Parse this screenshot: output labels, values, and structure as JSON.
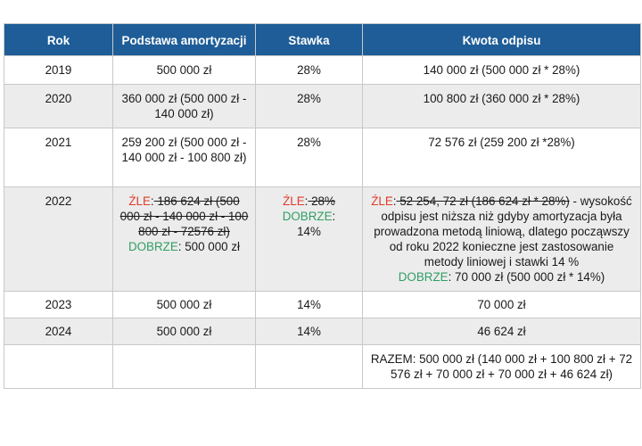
{
  "headers": [
    "Rok",
    "Podstawa amortyzacji",
    "Stawka",
    "Kwota odpisu"
  ],
  "rows": [
    {
      "year": "2019",
      "base": "500 000 zł",
      "rate": "28%",
      "amount": "140 000 zł (500 000 zł * 28%)"
    },
    {
      "year": "2020",
      "base": "360 000 zł (500 000 zł - 140 000 zł)",
      "rate": "28%",
      "amount": "100 800 zł (360 000 zł * 28%)"
    },
    {
      "year": "2021",
      "base": "259 200 zł (500 000 zł - 140 000 zł - 100 800 zł)",
      "rate": "28%",
      "amount": "72 576 zł (259 200 zł *28%)"
    },
    {
      "year": "2022",
      "base_bad_label": "ŹLE",
      "base_bad_value": " 186 624 zł (500 000 zł - 140 000 zł - 100 800 zł - 72576 zł)",
      "base_good_label": "DOBRZE",
      "base_good_value": ": 500 000 zł",
      "rate_bad_label": "ŹLE",
      "rate_bad_value": " 28%",
      "rate_good_label": "DOBRZE",
      "rate_good_value": "14%",
      "amount_bad_label": "ŹLE",
      "amount_bad_value": " 52 254, 72 zł (186 624 zł * 28%)",
      "amount_note": " - wysokość odpisu jest niższa niż gdyby amortyzacja była prowadzona metodą liniową, dlatego począwszy od roku 2022 konieczne jest zastosowanie metody liniowej i stawki 14 %",
      "amount_good_label": "DOBRZE",
      "amount_good_value": ": 70 000 zł (500 000 zł * 14%)"
    },
    {
      "year": "2023",
      "base": "500 000 zł",
      "rate": "14%",
      "amount": "70 000 zł"
    },
    {
      "year": "2024",
      "base": "500 000 zł",
      "rate": "14%",
      "amount": "46 624 zł"
    },
    {
      "year": "",
      "base": "",
      "rate": "",
      "amount": "RAZEM: 500 000 zł (140 000 zł + 100 800 zł + 72 576 zł + 70 000 zł + 70 000 zł + 46 624 zł)"
    }
  ],
  "colors": {
    "header_bg": "#1e5d97",
    "bad": "#e03b2b",
    "good": "#2f9e63",
    "alt_row": "#ececec"
  }
}
